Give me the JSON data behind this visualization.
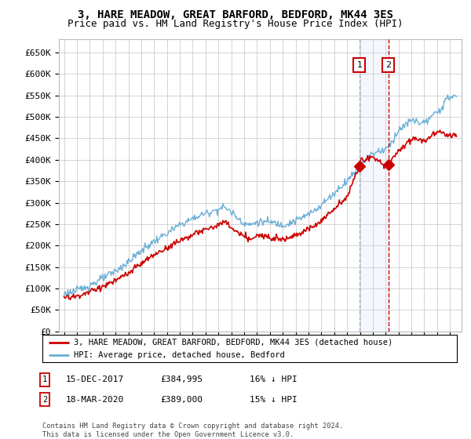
{
  "title": "3, HARE MEADOW, GREAT BARFORD, BEDFORD, MK44 3ES",
  "subtitle": "Price paid vs. HM Land Registry's House Price Index (HPI)",
  "ylim": [
    0,
    680000
  ],
  "yticks": [
    0,
    50000,
    100000,
    150000,
    200000,
    250000,
    300000,
    350000,
    400000,
    450000,
    500000,
    550000,
    600000,
    650000
  ],
  "sale1_date": 2017.96,
  "sale1_price": 384995,
  "sale2_date": 2020.21,
  "sale2_price": 389000,
  "hpi_color": "#6baed6",
  "price_color": "#cc0000",
  "vline1_color": "#aaaacc",
  "vline2_color": "#cc0000",
  "shade_color": "#c6d9f0",
  "background_color": "#ffffff",
  "grid_color": "#cccccc",
  "legend1_label": "3, HARE MEADOW, GREAT BARFORD, BEDFORD, MK44 3ES (detached house)",
  "legend2_label": "HPI: Average price, detached house, Bedford",
  "footnote": "Contains HM Land Registry data © Crown copyright and database right 2024.\nThis data is licensed under the Open Government Licence v3.0.",
  "title_fontsize": 10,
  "subtitle_fontsize": 9,
  "hpi_knots_x": [
    1995,
    1996,
    1997,
    1998,
    1999,
    2000,
    2001,
    2002,
    2003,
    2004,
    2005,
    2006,
    2007,
    2007.5,
    2008,
    2008.5,
    2009,
    2009.5,
    2010,
    2011,
    2012,
    2013,
    2014,
    2015,
    2016,
    2017,
    2017.96,
    2018,
    2019,
    2020,
    2020.21,
    2021,
    2022,
    2023,
    2024,
    2025
  ],
  "hpi_knots_y": [
    88000,
    95000,
    108000,
    123000,
    140000,
    162000,
    188000,
    210000,
    228000,
    248000,
    263000,
    275000,
    285000,
    290000,
    278000,
    265000,
    252000,
    248000,
    255000,
    255000,
    248000,
    258000,
    272000,
    295000,
    322000,
    352000,
    383000,
    390000,
    415000,
    425000,
    430000,
    468000,
    492000,
    485000,
    510000,
    548000
  ],
  "red_knots_x": [
    1995,
    1996,
    1997,
    1998,
    1999,
    2000,
    2001,
    2002,
    2003,
    2004,
    2005,
    2006,
    2007,
    2007.5,
    2008,
    2008.5,
    2009,
    2009.5,
    2010,
    2011,
    2012,
    2013,
    2014,
    2015,
    2016,
    2017,
    2017.96,
    2018,
    2019,
    2020,
    2020.21,
    2021,
    2022,
    2023,
    2024,
    2025
  ],
  "red_knots_y": [
    78000,
    82000,
    92000,
    105000,
    118000,
    135000,
    158000,
    178000,
    195000,
    212000,
    225000,
    237000,
    248000,
    255000,
    242000,
    230000,
    220000,
    215000,
    222000,
    222000,
    215000,
    225000,
    238000,
    258000,
    285000,
    315000,
    384995,
    400000,
    405000,
    385000,
    389000,
    420000,
    450000,
    445000,
    465000,
    458000
  ]
}
